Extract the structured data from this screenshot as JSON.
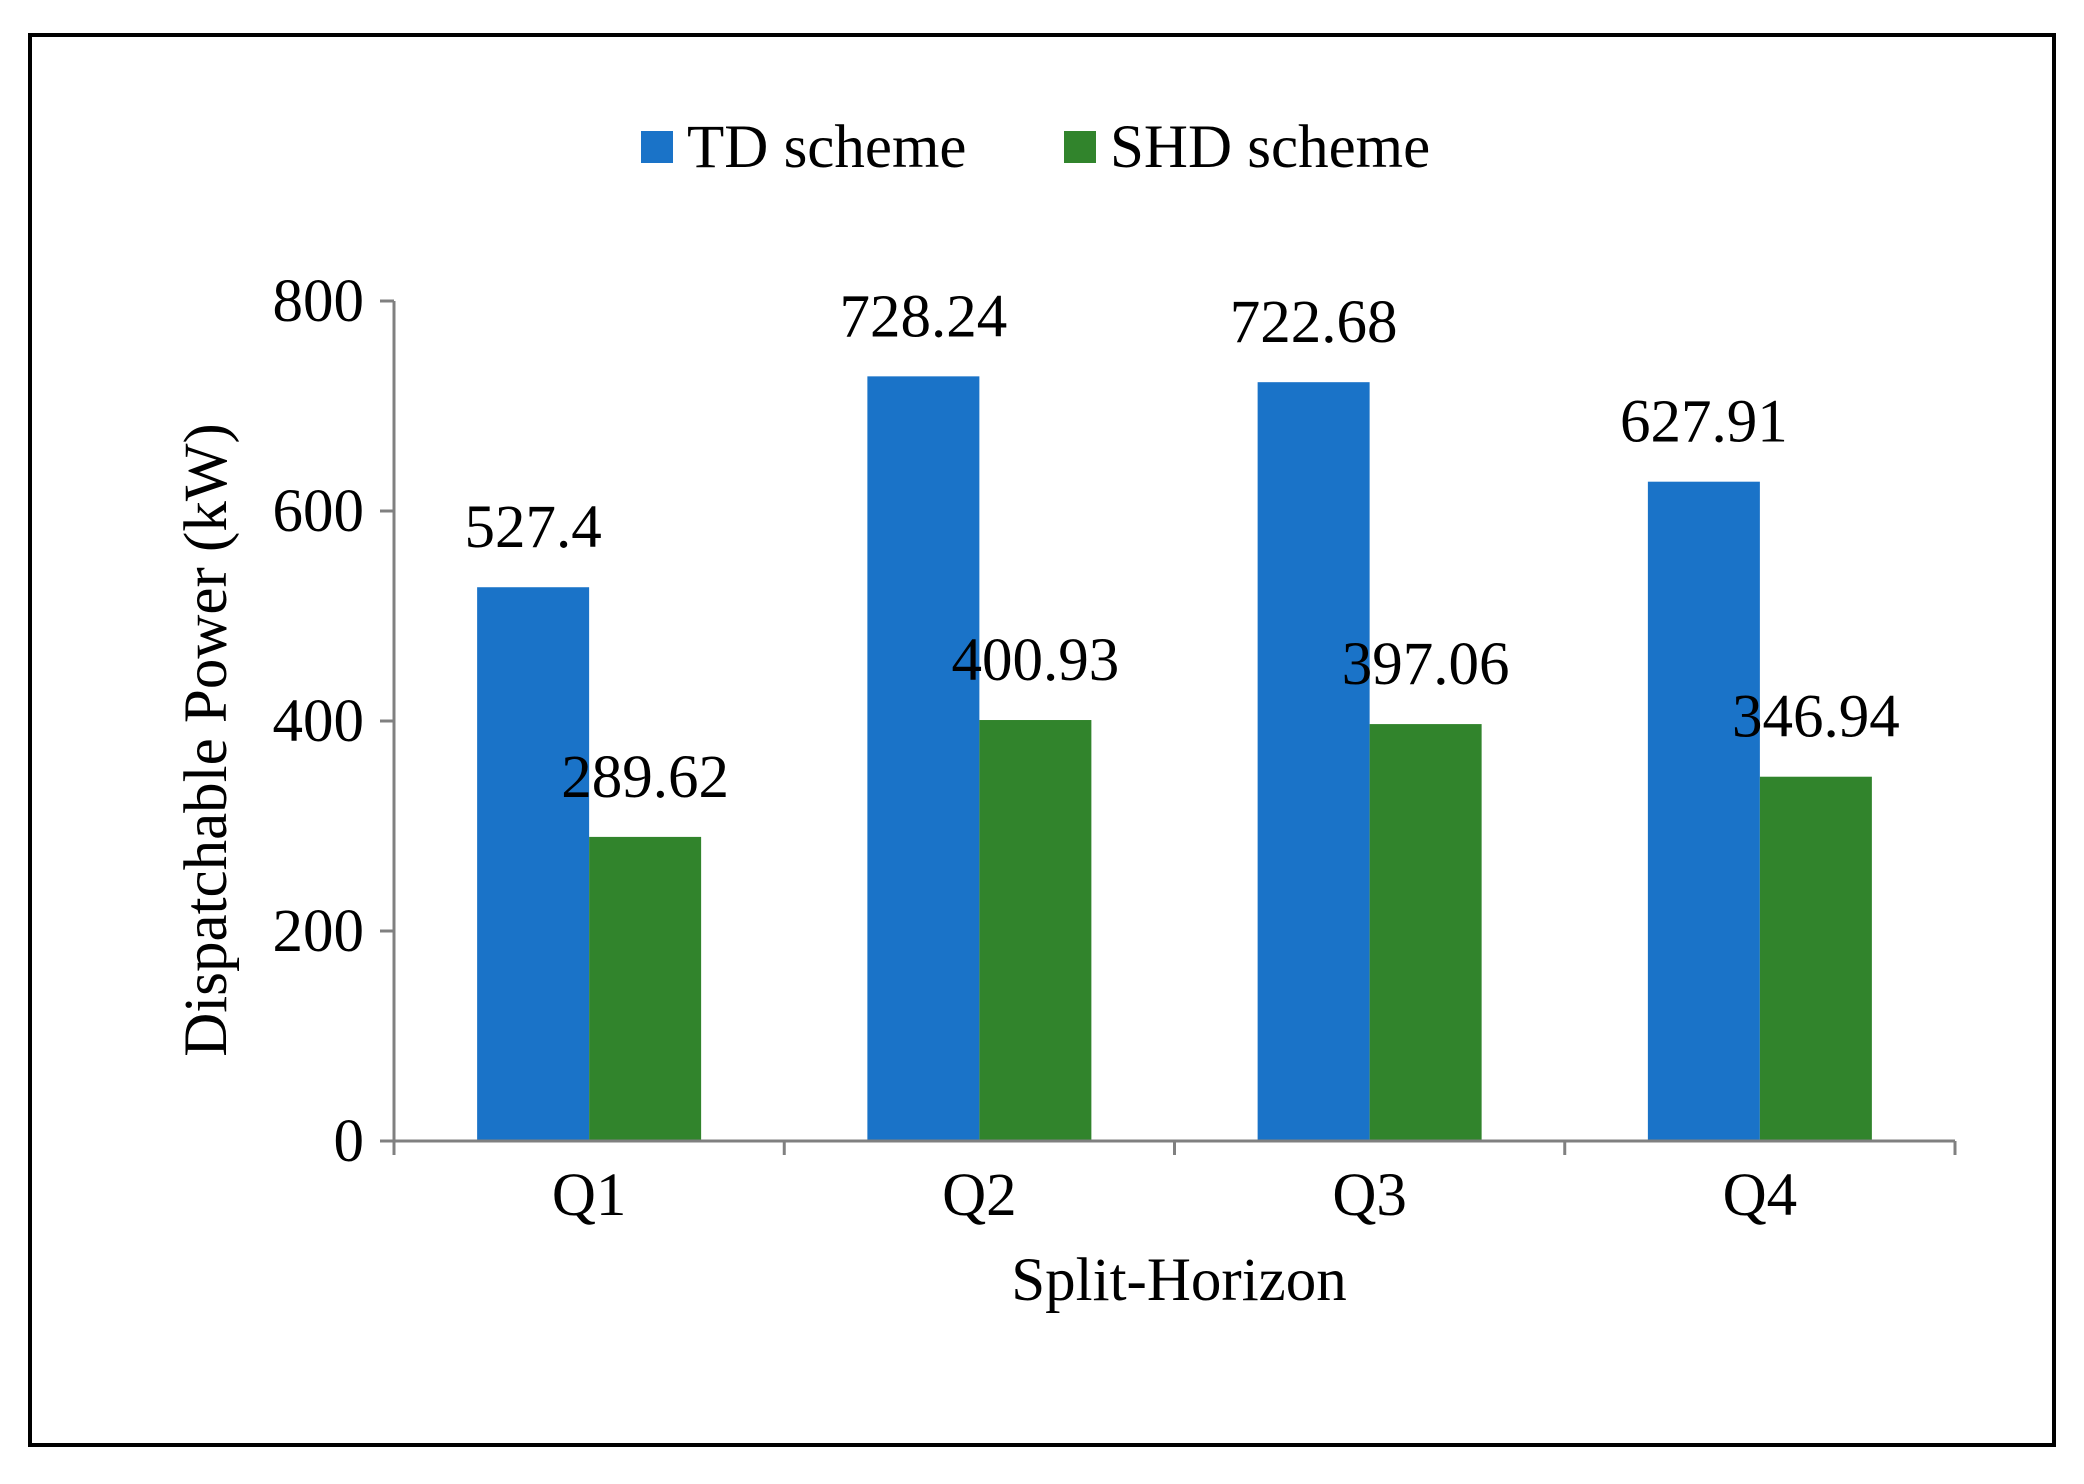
{
  "chart_data": {
    "type": "bar",
    "title": "",
    "xlabel": "Split-Horizon",
    "ylabel": "Dispatchable Power (kW)",
    "ylim": [
      0,
      800
    ],
    "yticks": [
      0,
      200,
      400,
      600,
      800
    ],
    "categories": [
      "Q1",
      "Q2",
      "Q3",
      "Q4"
    ],
    "series": [
      {
        "name": "TD scheme",
        "color": "#1a73c8",
        "values": [
          527.4,
          728.24,
          722.68,
          627.91
        ],
        "labels": [
          "527.4",
          "728.24",
          "722.68",
          "627.91"
        ]
      },
      {
        "name": "SHD scheme",
        "color": "#31842c",
        "values": [
          289.62,
          400.93,
          397.06,
          346.94
        ],
        "labels": [
          "289.62",
          "400.93",
          "397.06",
          "346.94"
        ]
      }
    ],
    "legend_position": "top-center",
    "grid": false
  }
}
